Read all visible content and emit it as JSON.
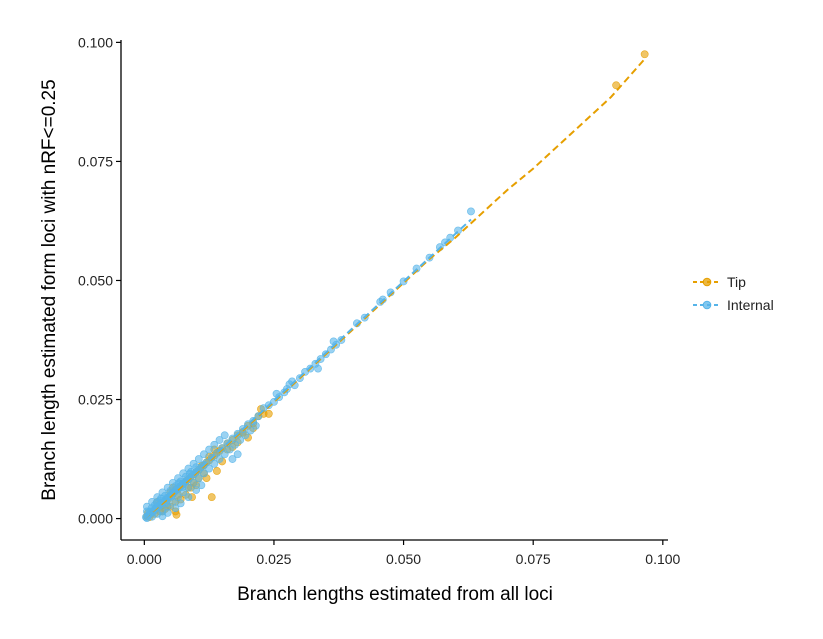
{
  "chart_data": {
    "type": "scatter",
    "xlabel": "Branch lengths estimated from all loci",
    "ylabel": "Branch length estimated form loci with nRF<=0.25",
    "xlim": [
      -0.0045,
      0.101
    ],
    "ylim": [
      -0.0045,
      0.1005
    ],
    "xticks": [
      0.0,
      0.025,
      0.05,
      0.075,
      0.1
    ],
    "xtick_labels": [
      "0.000",
      "0.025",
      "0.050",
      "0.075",
      "0.100"
    ],
    "yticks": [
      0.0,
      0.025,
      0.05,
      0.075,
      0.1
    ],
    "ytick_labels": [
      "0.000",
      "0.025",
      "0.050",
      "0.075",
      "0.100"
    ],
    "grid": false,
    "legend_position": "right",
    "series": [
      {
        "name": "Tip",
        "color": "#E69F00",
        "trend": [
          [
            0.0,
            0.0
          ],
          [
            0.005,
            0.0045
          ],
          [
            0.01,
            0.0095
          ],
          [
            0.015,
            0.0145
          ],
          [
            0.02,
            0.0195
          ],
          [
            0.025,
            0.0245
          ],
          [
            0.03,
            0.0295
          ],
          [
            0.035,
            0.0345
          ],
          [
            0.04,
            0.0395
          ],
          [
            0.045,
            0.0445
          ],
          [
            0.05,
            0.0495
          ],
          [
            0.055,
            0.0545
          ],
          [
            0.06,
            0.059
          ],
          [
            0.065,
            0.064
          ],
          [
            0.07,
            0.069
          ],
          [
            0.075,
            0.0735
          ],
          [
            0.08,
            0.0785
          ],
          [
            0.085,
            0.0835
          ],
          [
            0.09,
            0.0885
          ],
          [
            0.0965,
            0.0965
          ]
        ],
        "points": [
          [
            0.0005,
            0.0005
          ],
          [
            0.001,
            0.0008
          ],
          [
            0.0015,
            0.0012
          ],
          [
            0.002,
            0.0018
          ],
          [
            0.0025,
            0.0022
          ],
          [
            0.003,
            0.003
          ],
          [
            0.0035,
            0.0028
          ],
          [
            0.004,
            0.0038
          ],
          [
            0.0045,
            0.004
          ],
          [
            0.005,
            0.0048
          ],
          [
            0.0055,
            0.0052
          ],
          [
            0.006,
            0.006
          ],
          [
            0.0065,
            0.0062
          ],
          [
            0.007,
            0.0068
          ],
          [
            0.0075,
            0.0072
          ],
          [
            0.008,
            0.0078
          ],
          [
            0.0085,
            0.0082
          ],
          [
            0.009,
            0.0088
          ],
          [
            0.0095,
            0.0092
          ],
          [
            0.01,
            0.0098
          ],
          [
            0.0105,
            0.0102
          ],
          [
            0.011,
            0.0108
          ],
          [
            0.0115,
            0.0112
          ],
          [
            0.012,
            0.0118
          ],
          [
            0.0125,
            0.0122
          ],
          [
            0.013,
            0.0128
          ],
          [
            0.0135,
            0.0132
          ],
          [
            0.014,
            0.0138
          ],
          [
            0.0145,
            0.0142
          ],
          [
            0.015,
            0.0148
          ],
          [
            0.016,
            0.0158
          ],
          [
            0.017,
            0.0165
          ],
          [
            0.018,
            0.0175
          ],
          [
            0.019,
            0.0182
          ],
          [
            0.02,
            0.0195
          ],
          [
            0.021,
            0.02
          ],
          [
            0.022,
            0.0215
          ],
          [
            0.023,
            0.022
          ],
          [
            0.002,
            0.001
          ],
          [
            0.003,
            0.0015
          ],
          [
            0.004,
            0.002
          ],
          [
            0.005,
            0.0025
          ],
          [
            0.006,
            0.0035
          ],
          [
            0.0065,
            0.005
          ],
          [
            0.007,
            0.004
          ],
          [
            0.008,
            0.005
          ],
          [
            0.009,
            0.0065
          ],
          [
            0.01,
            0.007
          ],
          [
            0.012,
            0.0085
          ],
          [
            0.013,
            0.0045
          ],
          [
            0.014,
            0.01
          ],
          [
            0.015,
            0.012
          ],
          [
            0.018,
            0.016
          ],
          [
            0.02,
            0.017
          ],
          [
            0.016,
            0.0145
          ],
          [
            0.017,
            0.015
          ],
          [
            0.019,
            0.018
          ],
          [
            0.021,
            0.019
          ],
          [
            0.0225,
            0.023
          ],
          [
            0.024,
            0.022
          ],
          [
            0.011,
            0.011
          ],
          [
            0.0125,
            0.013
          ],
          [
            0.0135,
            0.0145
          ],
          [
            0.0092,
            0.0045
          ],
          [
            0.005,
            0.0055
          ],
          [
            0.0055,
            0.0065
          ],
          [
            0.0045,
            0.0025
          ],
          [
            0.006,
            0.0015
          ],
          [
            0.0062,
            0.0008
          ],
          [
            0.0025,
            0.0035
          ],
          [
            0.0035,
            0.0015
          ],
          [
            0.001,
            0.0003
          ],
          [
            0.0007,
            0.0012
          ],
          [
            0.0085,
            0.0065
          ],
          [
            0.0095,
            0.0075
          ],
          [
            0.0105,
            0.0085
          ],
          [
            0.0115,
            0.0095
          ],
          [
            0.091,
            0.091
          ],
          [
            0.0965,
            0.0975
          ]
        ]
      },
      {
        "name": "Internal",
        "color": "#56B4E9",
        "trend": [
          [
            0.0,
            0.0
          ],
          [
            0.005,
            0.005
          ],
          [
            0.01,
            0.0098
          ],
          [
            0.015,
            0.0148
          ],
          [
            0.02,
            0.0198
          ],
          [
            0.025,
            0.0248
          ],
          [
            0.03,
            0.0298
          ],
          [
            0.035,
            0.0348
          ],
          [
            0.04,
            0.0398
          ],
          [
            0.045,
            0.0448
          ],
          [
            0.05,
            0.0498
          ],
          [
            0.055,
            0.0548
          ],
          [
            0.06,
            0.0598
          ],
          [
            0.063,
            0.0628
          ]
        ],
        "points": [
          [
            0.0003,
            0.0003
          ],
          [
            0.0006,
            0.0005
          ],
          [
            0.0009,
            0.0008
          ],
          [
            0.0012,
            0.0011
          ],
          [
            0.0015,
            0.0014
          ],
          [
            0.0018,
            0.0016
          ],
          [
            0.002,
            0.002
          ],
          [
            0.0022,
            0.0021
          ],
          [
            0.0025,
            0.0024
          ],
          [
            0.0028,
            0.0026
          ],
          [
            0.003,
            0.0029
          ],
          [
            0.0033,
            0.0031
          ],
          [
            0.0035,
            0.0034
          ],
          [
            0.0038,
            0.0036
          ],
          [
            0.004,
            0.0039
          ],
          [
            0.0043,
            0.0041
          ],
          [
            0.0045,
            0.0044
          ],
          [
            0.0048,
            0.0046
          ],
          [
            0.005,
            0.0049
          ],
          [
            0.0053,
            0.0051
          ],
          [
            0.0055,
            0.0054
          ],
          [
            0.0058,
            0.0056
          ],
          [
            0.006,
            0.0059
          ],
          [
            0.0063,
            0.0061
          ],
          [
            0.0065,
            0.0064
          ],
          [
            0.0068,
            0.0066
          ],
          [
            0.007,
            0.0069
          ],
          [
            0.0073,
            0.0071
          ],
          [
            0.0075,
            0.0074
          ],
          [
            0.0078,
            0.0076
          ],
          [
            0.008,
            0.0079
          ],
          [
            0.0085,
            0.0083
          ],
          [
            0.009,
            0.0088
          ],
          [
            0.0095,
            0.0093
          ],
          [
            0.01,
            0.0098
          ],
          [
            0.0105,
            0.0103
          ],
          [
            0.011,
            0.0108
          ],
          [
            0.0115,
            0.0113
          ],
          [
            0.012,
            0.0118
          ],
          [
            0.013,
            0.0128
          ],
          [
            0.014,
            0.0138
          ],
          [
            0.015,
            0.0148
          ],
          [
            0.016,
            0.0158
          ],
          [
            0.017,
            0.0168
          ],
          [
            0.018,
            0.0178
          ],
          [
            0.019,
            0.0188
          ],
          [
            0.02,
            0.0198
          ],
          [
            0.021,
            0.0205
          ],
          [
            0.022,
            0.0215
          ],
          [
            0.023,
            0.0232
          ],
          [
            0.024,
            0.0238
          ],
          [
            0.025,
            0.0245
          ],
          [
            0.0255,
            0.0262
          ],
          [
            0.026,
            0.0255
          ],
          [
            0.027,
            0.0265
          ],
          [
            0.0275,
            0.0272
          ],
          [
            0.028,
            0.0282
          ],
          [
            0.0285,
            0.0288
          ],
          [
            0.029,
            0.028
          ],
          [
            0.03,
            0.0295
          ],
          [
            0.031,
            0.0308
          ],
          [
            0.032,
            0.0315
          ],
          [
            0.033,
            0.0325
          ],
          [
            0.034,
            0.0335
          ],
          [
            0.035,
            0.0345
          ],
          [
            0.036,
            0.0355
          ],
          [
            0.037,
            0.0365
          ],
          [
            0.038,
            0.0375
          ],
          [
            0.0335,
            0.0315
          ],
          [
            0.0365,
            0.0372
          ],
          [
            0.041,
            0.041
          ],
          [
            0.0425,
            0.0422
          ],
          [
            0.0455,
            0.0455
          ],
          [
            0.046,
            0.046
          ],
          [
            0.0475,
            0.0475
          ],
          [
            0.05,
            0.0498
          ],
          [
            0.0525,
            0.0525
          ],
          [
            0.055,
            0.0548
          ],
          [
            0.057,
            0.057
          ],
          [
            0.058,
            0.058
          ],
          [
            0.059,
            0.059
          ],
          [
            0.0605,
            0.0605
          ],
          [
            0.063,
            0.0645
          ],
          [
            0.0005,
            0.0001
          ],
          [
            0.0015,
            0.0004
          ],
          [
            0.0025,
            0.001
          ],
          [
            0.0035,
            0.0015
          ],
          [
            0.0045,
            0.0025
          ],
          [
            0.0055,
            0.0035
          ],
          [
            0.0065,
            0.0045
          ],
          [
            0.0075,
            0.0055
          ],
          [
            0.0085,
            0.0065
          ],
          [
            0.0095,
            0.0075
          ],
          [
            0.0105,
            0.0085
          ],
          [
            0.0115,
            0.0095
          ],
          [
            0.0125,
            0.0105
          ],
          [
            0.0135,
            0.0115
          ],
          [
            0.0145,
            0.0125
          ],
          [
            0.0155,
            0.0135
          ],
          [
            0.0165,
            0.0145
          ],
          [
            0.0175,
            0.0155
          ],
          [
            0.0185,
            0.0165
          ],
          [
            0.0195,
            0.0175
          ],
          [
            0.0205,
            0.0185
          ],
          [
            0.0215,
            0.0195
          ],
          [
            0.018,
            0.0135
          ],
          [
            0.017,
            0.0125
          ],
          [
            0.0155,
            0.0175
          ],
          [
            0.0145,
            0.0165
          ],
          [
            0.0135,
            0.0155
          ],
          [
            0.0125,
            0.0145
          ],
          [
            0.0115,
            0.0135
          ],
          [
            0.0105,
            0.0125
          ],
          [
            0.0095,
            0.0115
          ],
          [
            0.0085,
            0.0105
          ],
          [
            0.0075,
            0.0095
          ],
          [
            0.0065,
            0.0085
          ],
          [
            0.0055,
            0.0075
          ],
          [
            0.0045,
            0.0065
          ],
          [
            0.0035,
            0.0055
          ],
          [
            0.0025,
            0.0045
          ],
          [
            0.0015,
            0.0035
          ],
          [
            0.0005,
            0.0025
          ],
          [
            0.001,
            0.0015
          ],
          [
            0.002,
            0.0028
          ],
          [
            0.003,
            0.0038
          ],
          [
            0.004,
            0.0048
          ],
          [
            0.005,
            0.0058
          ],
          [
            0.006,
            0.0068
          ],
          [
            0.007,
            0.0078
          ],
          [
            0.008,
            0.0088
          ],
          [
            0.009,
            0.0098
          ],
          [
            0.01,
            0.0108
          ],
          [
            0.006,
            0.0022
          ],
          [
            0.007,
            0.0032
          ],
          [
            0.0085,
            0.0045
          ],
          [
            0.01,
            0.006
          ],
          [
            0.011,
            0.007
          ],
          [
            0.0035,
            0.0005
          ],
          [
            0.0045,
            0.0012
          ],
          [
            0.0005,
            0.0015
          ],
          [
            0.0014,
            0.0022
          ],
          [
            0.0024,
            0.0034
          ],
          [
            0.0052,
            0.0046
          ],
          [
            0.0066,
            0.0074
          ],
          [
            0.0074,
            0.0066
          ],
          [
            0.0088,
            0.0094
          ],
          [
            0.0042,
            0.0032
          ],
          [
            0.0032,
            0.0042
          ]
        ]
      }
    ]
  }
}
